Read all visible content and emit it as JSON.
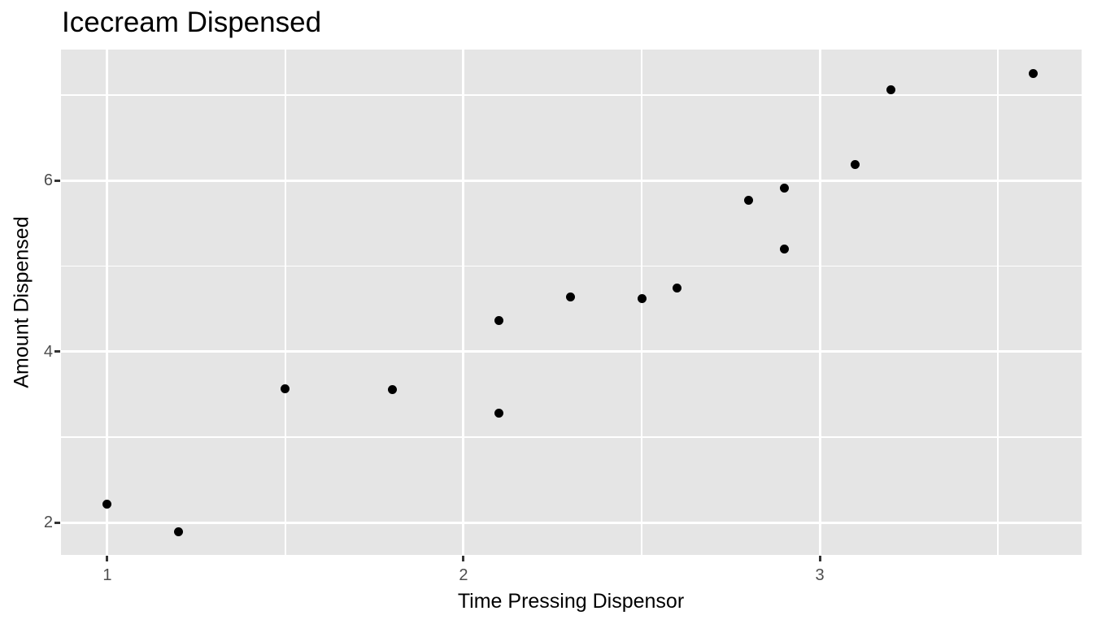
{
  "chart_data": {
    "type": "scatter",
    "title": "Icecream Dispensed",
    "xlabel": "Time Pressing Dispensor",
    "ylabel": "Amount Dispensed",
    "xlim": [
      0.87,
      3.735
    ],
    "ylim": [
      1.625,
      7.53
    ],
    "x_major_ticks": [
      1,
      2,
      3
    ],
    "x_minor_ticks": [
      1.5,
      2.5,
      3.5
    ],
    "y_major_ticks": [
      2,
      4,
      6
    ],
    "y_minor_ticks": [
      3,
      5,
      7
    ],
    "grid": true,
    "legend": "none",
    "points": [
      {
        "x": 1.0,
        "y": 2.22
      },
      {
        "x": 1.2,
        "y": 1.9
      },
      {
        "x": 1.5,
        "y": 3.57
      },
      {
        "x": 1.8,
        "y": 3.56
      },
      {
        "x": 2.1,
        "y": 4.36
      },
      {
        "x": 2.1,
        "y": 3.28
      },
      {
        "x": 2.3,
        "y": 4.64
      },
      {
        "x": 2.5,
        "y": 4.62
      },
      {
        "x": 2.6,
        "y": 4.74
      },
      {
        "x": 2.8,
        "y": 5.77
      },
      {
        "x": 2.9,
        "y": 5.91
      },
      {
        "x": 2.9,
        "y": 5.2
      },
      {
        "x": 3.1,
        "y": 6.19
      },
      {
        "x": 3.2,
        "y": 7.06
      },
      {
        "x": 3.6,
        "y": 7.25
      }
    ],
    "colors": {
      "panel_background": "#e5e5e5",
      "gridline": "#ffffff",
      "point": "#000000",
      "tick_mark": "#333333",
      "tick_label": "#4d4d4d",
      "axis_title": "#000000",
      "title": "#000000"
    }
  }
}
